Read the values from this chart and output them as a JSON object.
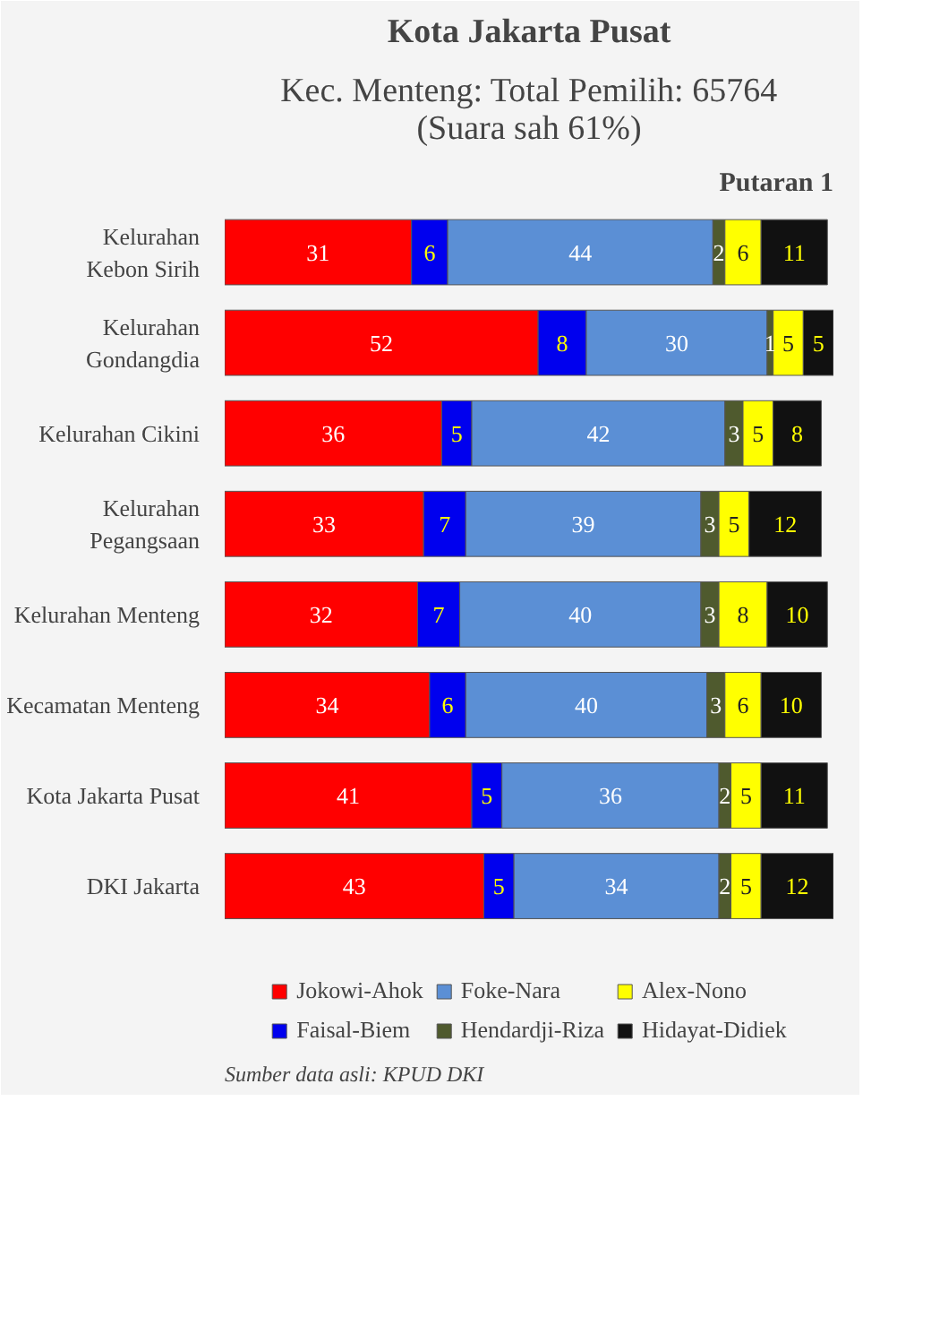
{
  "chart_data": {
    "type": "bar",
    "orientation": "horizontal",
    "stacked": true,
    "data_labels": true,
    "legend": "bottom",
    "grid": false,
    "tick_labels": "y",
    "title": "Kota Jakarta Pusat",
    "subtitle": "Kec. Menteng: Total Pemilih: 65764\n(Suara sah 61%)",
    "annotations": [
      "Putaran 1",
      "Sumber data asli: KPUD DKI"
    ],
    "categories": [
      "Kelurahan Kebon Sirih",
      "Kelurahan Gondangdia",
      "Kelurahan Cikini",
      "Kelurahan Pegangsaan",
      "Kelurahan Menteng",
      "Kecamatan Menteng",
      "Kota Jakarta Pusat",
      "DKI Jakarta"
    ],
    "series": [
      {
        "name": "Jokowi-Ahok",
        "color": "#ff0000",
        "values": [
          31,
          52,
          36,
          33,
          32,
          34,
          41,
          43
        ]
      },
      {
        "name": "Faisal-Biem",
        "color": "#0000ee",
        "values": [
          6,
          8,
          5,
          7,
          7,
          6,
          5,
          5
        ]
      },
      {
        "name": "Foke-Nara",
        "color": "#5b8fd5",
        "values": [
          44,
          30,
          42,
          39,
          40,
          40,
          36,
          34
        ]
      },
      {
        "name": "Hendardji-Riza",
        "color": "#4f5a2e",
        "values": [
          2,
          1,
          3,
          3,
          3,
          3,
          2,
          2
        ]
      },
      {
        "name": "Alex-Nono",
        "color": "#ffff00",
        "values": [
          6,
          5,
          5,
          5,
          8,
          6,
          5,
          5
        ]
      },
      {
        "name": "Hidayat-Didiek",
        "color": "#111111",
        "values": [
          11,
          5,
          8,
          12,
          10,
          10,
          11,
          12
        ]
      }
    ]
  }
}
